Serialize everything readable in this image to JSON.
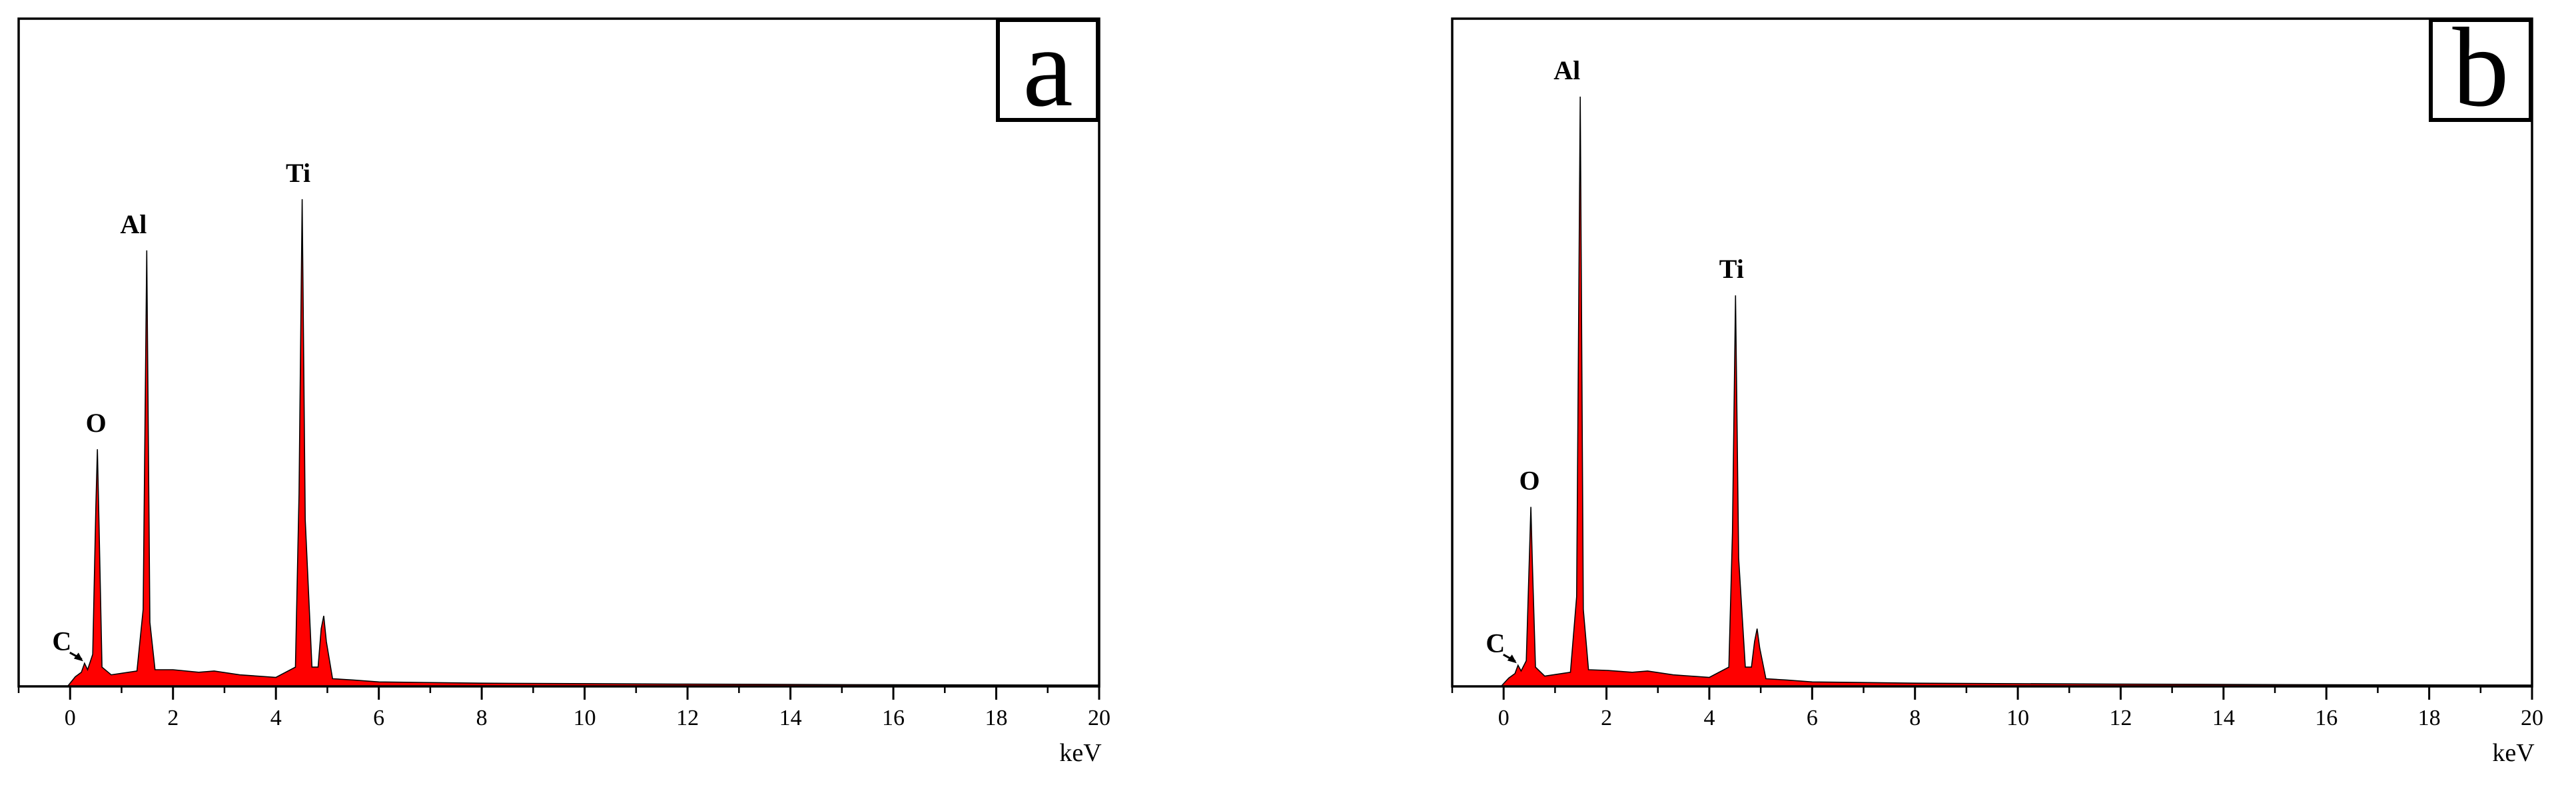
{
  "chart_data": [
    {
      "type": "area",
      "panel_label": "a",
      "xlabel": "keV",
      "xlim": [
        -1,
        20
      ],
      "ylim": [
        0,
        100
      ],
      "xticks": [
        0,
        2,
        4,
        6,
        8,
        10,
        12,
        14,
        16,
        18,
        20
      ],
      "y_axis_ticks_shown": false,
      "grid": false,
      "fill_color": "#ff0000",
      "line_color": "#000000",
      "peaks": [
        {
          "label": "C",
          "x": 0.28,
          "y": 3.6
        },
        {
          "label": "O",
          "x": 0.53,
          "y": 37
        },
        {
          "label": "Al",
          "x": 1.49,
          "y": 68
        },
        {
          "label": "Ti",
          "x": 4.51,
          "y": 76
        },
        {
          "label": "",
          "x": 4.93,
          "y": 11
        }
      ],
      "spectrum": [
        [
          -0.05,
          0
        ],
        [
          0.1,
          1.5
        ],
        [
          0.22,
          2.2
        ],
        [
          0.28,
          3.6
        ],
        [
          0.34,
          2.6
        ],
        [
          0.44,
          5
        ],
        [
          0.5,
          28
        ],
        [
          0.53,
          37
        ],
        [
          0.56,
          26
        ],
        [
          0.62,
          3
        ],
        [
          0.8,
          1.8
        ],
        [
          1.3,
          2.4
        ],
        [
          1.42,
          12
        ],
        [
          1.49,
          68
        ],
        [
          1.55,
          10
        ],
        [
          1.65,
          2.6
        ],
        [
          2.0,
          2.6
        ],
        [
          2.5,
          2.2
        ],
        [
          2.8,
          2.4
        ],
        [
          3.3,
          1.8
        ],
        [
          4.0,
          1.4
        ],
        [
          4.38,
          3
        ],
        [
          4.45,
          30
        ],
        [
          4.51,
          76
        ],
        [
          4.57,
          26
        ],
        [
          4.7,
          3
        ],
        [
          4.82,
          3
        ],
        [
          4.88,
          9
        ],
        [
          4.93,
          11
        ],
        [
          4.98,
          7
        ],
        [
          5.1,
          1.2
        ],
        [
          5.5,
          1.0
        ],
        [
          6.0,
          0.7
        ],
        [
          8.0,
          0.5
        ],
        [
          12.0,
          0.35
        ],
        [
          16.0,
          0.25
        ],
        [
          20.0,
          0.2
        ]
      ]
    },
    {
      "type": "area",
      "panel_label": "b",
      "xlabel": "keV",
      "xlim": [
        -1,
        20
      ],
      "ylim": [
        0,
        100
      ],
      "xticks": [
        0,
        2,
        4,
        6,
        8,
        10,
        12,
        14,
        16,
        18,
        20
      ],
      "y_axis_ticks_shown": false,
      "grid": false,
      "fill_color": "#ff0000",
      "line_color": "#000000",
      "peaks": [
        {
          "label": "C",
          "x": 0.28,
          "y": 3.3
        },
        {
          "label": "O",
          "x": 0.53,
          "y": 28
        },
        {
          "label": "Al",
          "x": 1.49,
          "y": 92
        },
        {
          "label": "Ti",
          "x": 4.51,
          "y": 61
        },
        {
          "label": "",
          "x": 4.93,
          "y": 9
        }
      ],
      "spectrum": [
        [
          -0.05,
          0
        ],
        [
          0.1,
          1.3
        ],
        [
          0.22,
          2.0
        ],
        [
          0.28,
          3.3
        ],
        [
          0.34,
          2.4
        ],
        [
          0.44,
          4
        ],
        [
          0.5,
          20
        ],
        [
          0.53,
          28
        ],
        [
          0.56,
          19
        ],
        [
          0.62,
          3
        ],
        [
          0.8,
          1.6
        ],
        [
          1.3,
          2.2
        ],
        [
          1.42,
          14
        ],
        [
          1.49,
          92
        ],
        [
          1.55,
          12
        ],
        [
          1.65,
          2.6
        ],
        [
          2.0,
          2.5
        ],
        [
          2.5,
          2.2
        ],
        [
          2.8,
          2.4
        ],
        [
          3.3,
          1.8
        ],
        [
          4.0,
          1.4
        ],
        [
          4.38,
          3
        ],
        [
          4.45,
          24
        ],
        [
          4.51,
          61
        ],
        [
          4.57,
          20
        ],
        [
          4.7,
          3
        ],
        [
          4.82,
          3
        ],
        [
          4.88,
          7
        ],
        [
          4.93,
          9
        ],
        [
          4.98,
          6
        ],
        [
          5.1,
          1.2
        ],
        [
          5.5,
          1.0
        ],
        [
          6.0,
          0.7
        ],
        [
          8.0,
          0.5
        ],
        [
          12.0,
          0.35
        ],
        [
          16.0,
          0.25
        ],
        [
          20.0,
          0.2
        ]
      ]
    }
  ]
}
